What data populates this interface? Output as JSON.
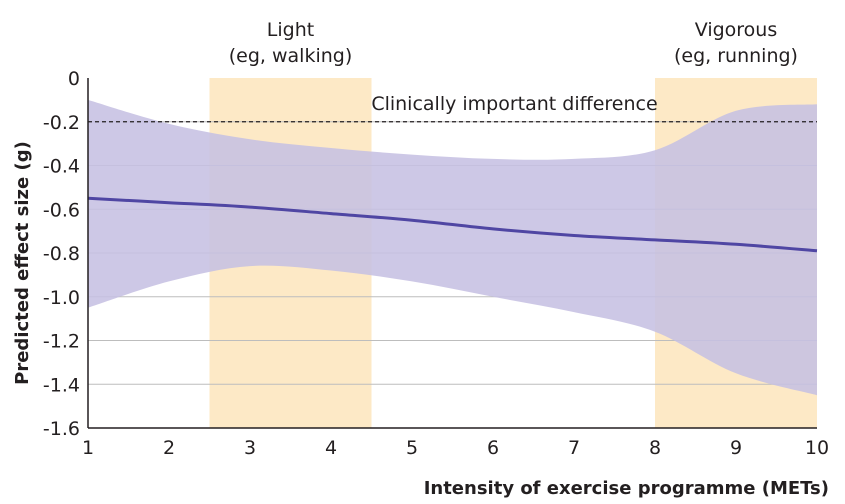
{
  "chart_data": {
    "type": "line",
    "xlabel": "Intensity of exercise programme (METs)",
    "ylabel": "Predicted effect size (g)",
    "xlim": [
      1,
      10
    ],
    "ylim": [
      -1.6,
      0
    ],
    "x_ticks": [
      "1",
      "2",
      "3",
      "4",
      "5",
      "6",
      "7",
      "8",
      "9",
      "10"
    ],
    "y_ticks": [
      "0",
      "-0.2",
      "-0.4",
      "-0.6",
      "-0.8",
      "-1.0",
      "-1.2",
      "-1.4",
      "-1.6"
    ],
    "grid": "horizontal",
    "bands": [
      {
        "x0": 2.5,
        "x1": 4.5,
        "label_line1": "Light",
        "label_line2": "(eg, walking)"
      },
      {
        "x0": 8,
        "x1": 10,
        "label_line1": "Vigorous",
        "label_line2": "(eg, running)"
      }
    ],
    "reference_line": {
      "y": -0.2,
      "label": "Clinically important difference"
    },
    "series": [
      {
        "x": [
          1,
          2,
          3,
          4,
          5,
          6,
          7,
          8,
          9,
          10
        ],
        "values": [
          -0.55,
          -0.57,
          -0.59,
          -0.62,
          -0.65,
          -0.69,
          -0.72,
          -0.74,
          -0.76,
          -0.79
        ],
        "upper": [
          -0.1,
          -0.21,
          -0.28,
          -0.32,
          -0.35,
          -0.37,
          -0.37,
          -0.33,
          -0.15,
          -0.12
        ],
        "lower": [
          -1.05,
          -0.93,
          -0.86,
          -0.88,
          -0.93,
          -1.0,
          -1.07,
          -1.16,
          -1.35,
          -1.45
        ]
      }
    ],
    "colors": {
      "band": "#fde9c6",
      "ci_band": "#c6c0e2",
      "line": "#4f46a3",
      "grid": "#bdbdbd",
      "reference": "#231f20"
    }
  }
}
